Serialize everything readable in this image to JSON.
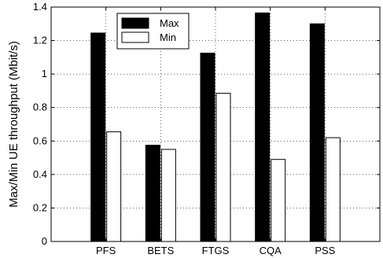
{
  "chart_data": {
    "type": "bar",
    "categories": [
      "PFS",
      "BETS",
      "FTGS",
      "CQA",
      "PSS"
    ],
    "series": [
      {
        "name": "Max",
        "values": [
          1.245,
          0.575,
          1.125,
          1.365,
          1.3
        ],
        "color": "#000000"
      },
      {
        "name": "Min",
        "values": [
          0.655,
          0.55,
          0.885,
          0.49,
          0.62
        ],
        "color": "#ffffff"
      }
    ],
    "title": "",
    "xlabel": "",
    "ylabel": "Max/Min UE throughput (Mbit/s)",
    "ylim": [
      0,
      1.4
    ],
    "yticks": [
      "0",
      "0.2",
      "0.4",
      "0.6",
      "0.8",
      "1",
      "1.2",
      "1.4"
    ],
    "grid": true,
    "legend_position": "top-center"
  }
}
